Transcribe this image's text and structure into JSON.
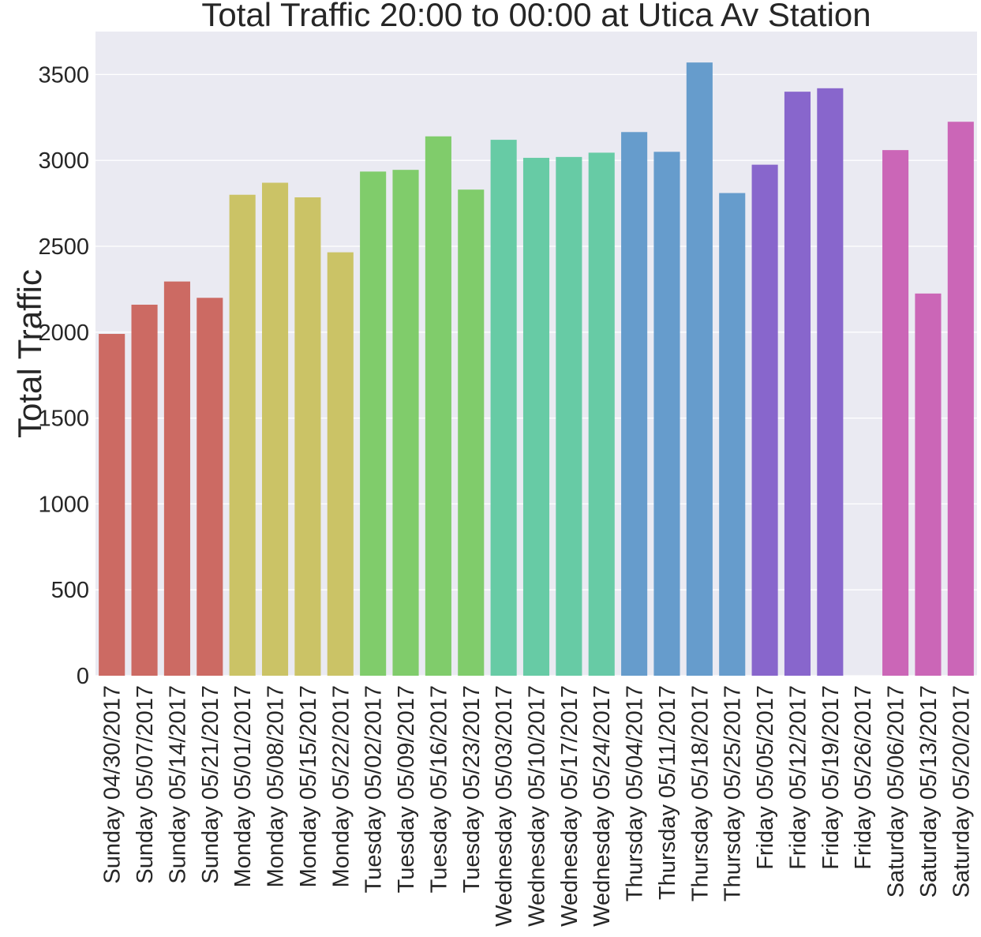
{
  "chart_data": {
    "type": "bar",
    "title": "Total Traffic 20:00 to 00:00 at Utica Av Station",
    "xlabel": "",
    "ylabel": "Total Traffic",
    "ylim": [
      0,
      3750
    ],
    "yticks": [
      0,
      500,
      1000,
      1500,
      2000,
      2500,
      3000,
      3500
    ],
    "grid": true,
    "categories": [
      "Sunday 04/30/2017",
      "Sunday 05/07/2017",
      "Sunday 05/14/2017",
      "Sunday 05/21/2017",
      "Monday 05/01/2017",
      "Monday 05/08/2017",
      "Monday 05/15/2017",
      "Monday 05/22/2017",
      "Tuesday 05/02/2017",
      "Tuesday 05/09/2017",
      "Tuesday 05/16/2017",
      "Tuesday 05/23/2017",
      "Wednesday 05/03/2017",
      "Wednesday 05/10/2017",
      "Wednesday 05/17/2017",
      "Wednesday 05/24/2017",
      "Thursday 05/04/2017",
      "Thursday 05/11/2017",
      "Thursday 05/18/2017",
      "Thursday 05/25/2017",
      "Friday 05/05/2017",
      "Friday 05/12/2017",
      "Friday 05/19/2017",
      "Friday 05/26/2017",
      "Saturday 05/06/2017",
      "Saturday 05/13/2017",
      "Saturday 05/20/2017"
    ],
    "values": [
      1990,
      2160,
      2295,
      2200,
      2800,
      2870,
      2785,
      2465,
      2935,
      2945,
      3140,
      2830,
      3120,
      3015,
      3020,
      3045,
      3165,
      3050,
      3570,
      2810,
      2975,
      3400,
      3420,
      0,
      3060,
      2225,
      3225
    ],
    "colors": [
      "#cc6a63",
      "#cc6a63",
      "#cc6a63",
      "#cc6a63",
      "#cbc366",
      "#cbc366",
      "#cbc366",
      "#cbc366",
      "#80cc6b",
      "#80cc6b",
      "#80cc6b",
      "#80cc6b",
      "#67cba5",
      "#67cba5",
      "#67cba5",
      "#67cba5",
      "#669ccc",
      "#669ccc",
      "#669ccc",
      "#669ccc",
      "#8866cc",
      "#8866cc",
      "#8866cc",
      "#8866cc",
      "#cb66b7",
      "#cb66b7",
      "#cb66b7"
    ],
    "plot_background": "#eaeaf2"
  }
}
